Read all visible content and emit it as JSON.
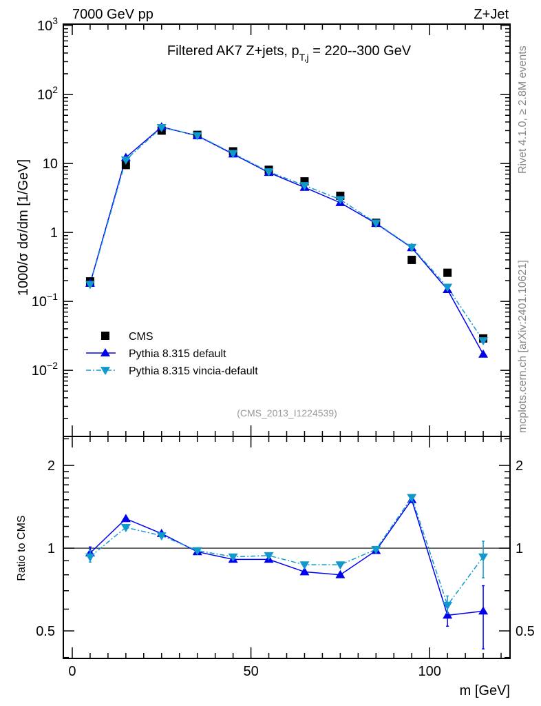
{
  "header": {
    "left": "7000 GeV pp",
    "right": "Z+Jet"
  },
  "side_texts": {
    "rivet": "Rivet 4.1.0, ≥ 2.8M events",
    "mcplots": "mcplots.cern.ch [arXiv:2401.10621]"
  },
  "chart_data": [
    {
      "type": "scatter",
      "title_main": "Filtered AK7 Z+jets, p",
      "title_sub": "T,j",
      "title_rest": " = 220--300 GeV",
      "ylabel": "1000/σ  dσ/dm [1/GeV]",
      "watermark": "(CMS_2013_I1224539)",
      "yscale": "log",
      "ylim": [
        0.0011,
        1050
      ],
      "xlim": [
        -2.5,
        122.5
      ],
      "y_ticks": [
        {
          "v": 1000,
          "base": "10",
          "exp": "3"
        },
        {
          "v": 100,
          "base": "10",
          "exp": "2"
        },
        {
          "v": 10,
          "base": "10",
          "exp": ""
        },
        {
          "v": 1,
          "base": "1",
          "exp": ""
        },
        {
          "v": 0.1,
          "base": "10",
          "exp": "−1"
        },
        {
          "v": 0.01,
          "base": "10",
          "exp": "−2"
        }
      ],
      "x": [
        5,
        15,
        25,
        35,
        45,
        55,
        65,
        75,
        85,
        95,
        105,
        115
      ],
      "legend_position": "bottom-left",
      "series": [
        {
          "name": "CMS",
          "color": "#000000",
          "marker": "square",
          "values": [
            0.195,
            9.5,
            30,
            26,
            15,
            8.1,
            5.5,
            3.4,
            1.38,
            0.4,
            0.26,
            0.029
          ]
        },
        {
          "name": "Pythia 8.315 default",
          "color": "#0000ee",
          "marker": "triangle-up",
          "line": "solid",
          "values": [
            0.182,
            12.2,
            33.9,
            25.2,
            13.7,
            7.4,
            4.5,
            2.7,
            1.35,
            0.6,
            0.148,
            0.0171
          ]
        },
        {
          "name": "Pythia 8.315 vincia-default",
          "color": "#1199cc",
          "marker": "triangle-down",
          "line": "dashdot",
          "values": [
            0.177,
            11.3,
            33.3,
            25.5,
            14.0,
            7.6,
            4.8,
            3.0,
            1.37,
            0.61,
            0.161,
            0.027
          ]
        }
      ]
    },
    {
      "type": "line",
      "ylabel": "Ratio to CMS",
      "xlabel": "m [GeV]",
      "yscale": "log",
      "ylim": [
        0.397,
        2.55
      ],
      "xlim": [
        -2.5,
        122.5
      ],
      "y_ticks": [
        {
          "v": 2,
          "label": "2"
        },
        {
          "v": 1,
          "label": "1"
        },
        {
          "v": 0.5,
          "label": "0.5"
        }
      ],
      "x_ticks": [
        {
          "v": 0,
          "label": "0"
        },
        {
          "v": 50,
          "label": "50"
        },
        {
          "v": 100,
          "label": "100"
        }
      ],
      "x": [
        5,
        15,
        25,
        35,
        45,
        55,
        65,
        75,
        85,
        95,
        105,
        115
      ],
      "series": [
        {
          "name": "Pythia 8.315 default",
          "color": "#0000ee",
          "values": [
            0.96,
            1.28,
            1.13,
            0.97,
            0.91,
            0.91,
            0.82,
            0.8,
            0.98,
            1.5,
            0.57,
            0.59
          ],
          "err_low": [
            0.91,
            null,
            null,
            null,
            null,
            null,
            null,
            null,
            null,
            null,
            0.52,
            0.43
          ],
          "err_high": [
            1.01,
            null,
            null,
            null,
            null,
            null,
            null,
            null,
            null,
            null,
            0.62,
            0.73
          ]
        },
        {
          "name": "Pythia 8.315 vincia-default",
          "color": "#1199cc",
          "values": [
            0.93,
            1.19,
            1.11,
            0.98,
            0.93,
            0.94,
            0.87,
            0.87,
            0.99,
            1.53,
            0.62,
            0.93
          ],
          "err_low": [
            0.89,
            null,
            null,
            null,
            null,
            null,
            null,
            null,
            null,
            null,
            0.58,
            0.78
          ],
          "err_high": [
            0.98,
            null,
            null,
            null,
            null,
            null,
            null,
            null,
            null,
            null,
            0.67,
            1.06
          ]
        }
      ]
    }
  ]
}
